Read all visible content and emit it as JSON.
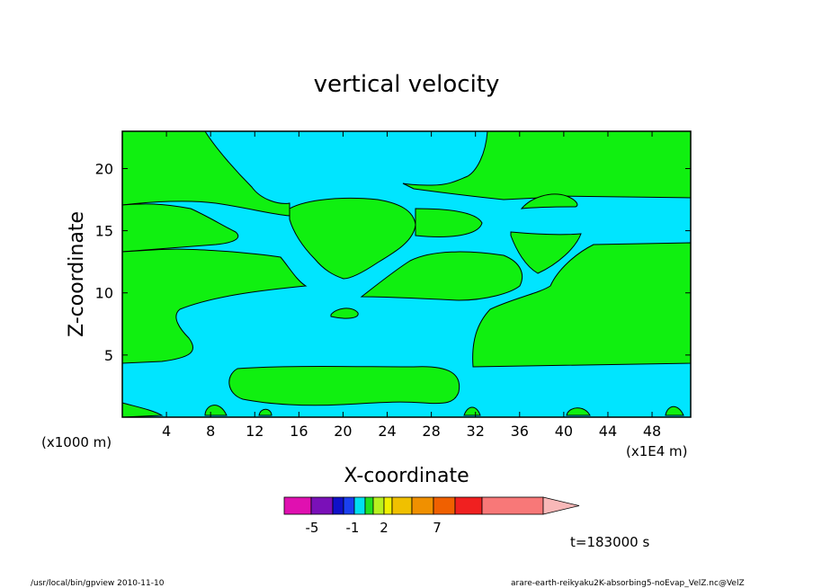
{
  "chart_data": {
    "type": "heatmap",
    "title": "vertical velocity",
    "xlabel": "X-coordinate",
    "ylabel": "Z-coordinate",
    "x_unit_left": "(x1000 m)",
    "x_unit_right": "(x1E4 m)",
    "xlim": [
      0,
      51.5
    ],
    "ylim": [
      0,
      23
    ],
    "x_ticks": [
      4,
      8,
      12,
      16,
      20,
      24,
      28,
      32,
      36,
      40,
      44,
      48
    ],
    "y_ticks": [
      5,
      10,
      15,
      20
    ],
    "time_label": "t=183000 s",
    "colorbar": {
      "colors": [
        "#e010b0",
        "#7a10b8",
        "#1010c8",
        "#1a40f0",
        "#00e0f0",
        "#20e020",
        "#b8f020",
        "#f0f000",
        "#f0c000",
        "#f09000",
        "#f06000",
        "#f02020",
        "#f87878",
        "#f8b8b8"
      ],
      "tick_labels": [
        "-5",
        "-1",
        "2",
        "7"
      ]
    },
    "regions_colors": {
      "background": "#00e5ff",
      "positive": "#10f010"
    },
    "footer_left": "/usr/local/bin/gpview  2010-11-10",
    "footer_right": "arare-earth-reikyaku2K-absorbing5-noEvap_VelZ.nc@VelZ"
  }
}
